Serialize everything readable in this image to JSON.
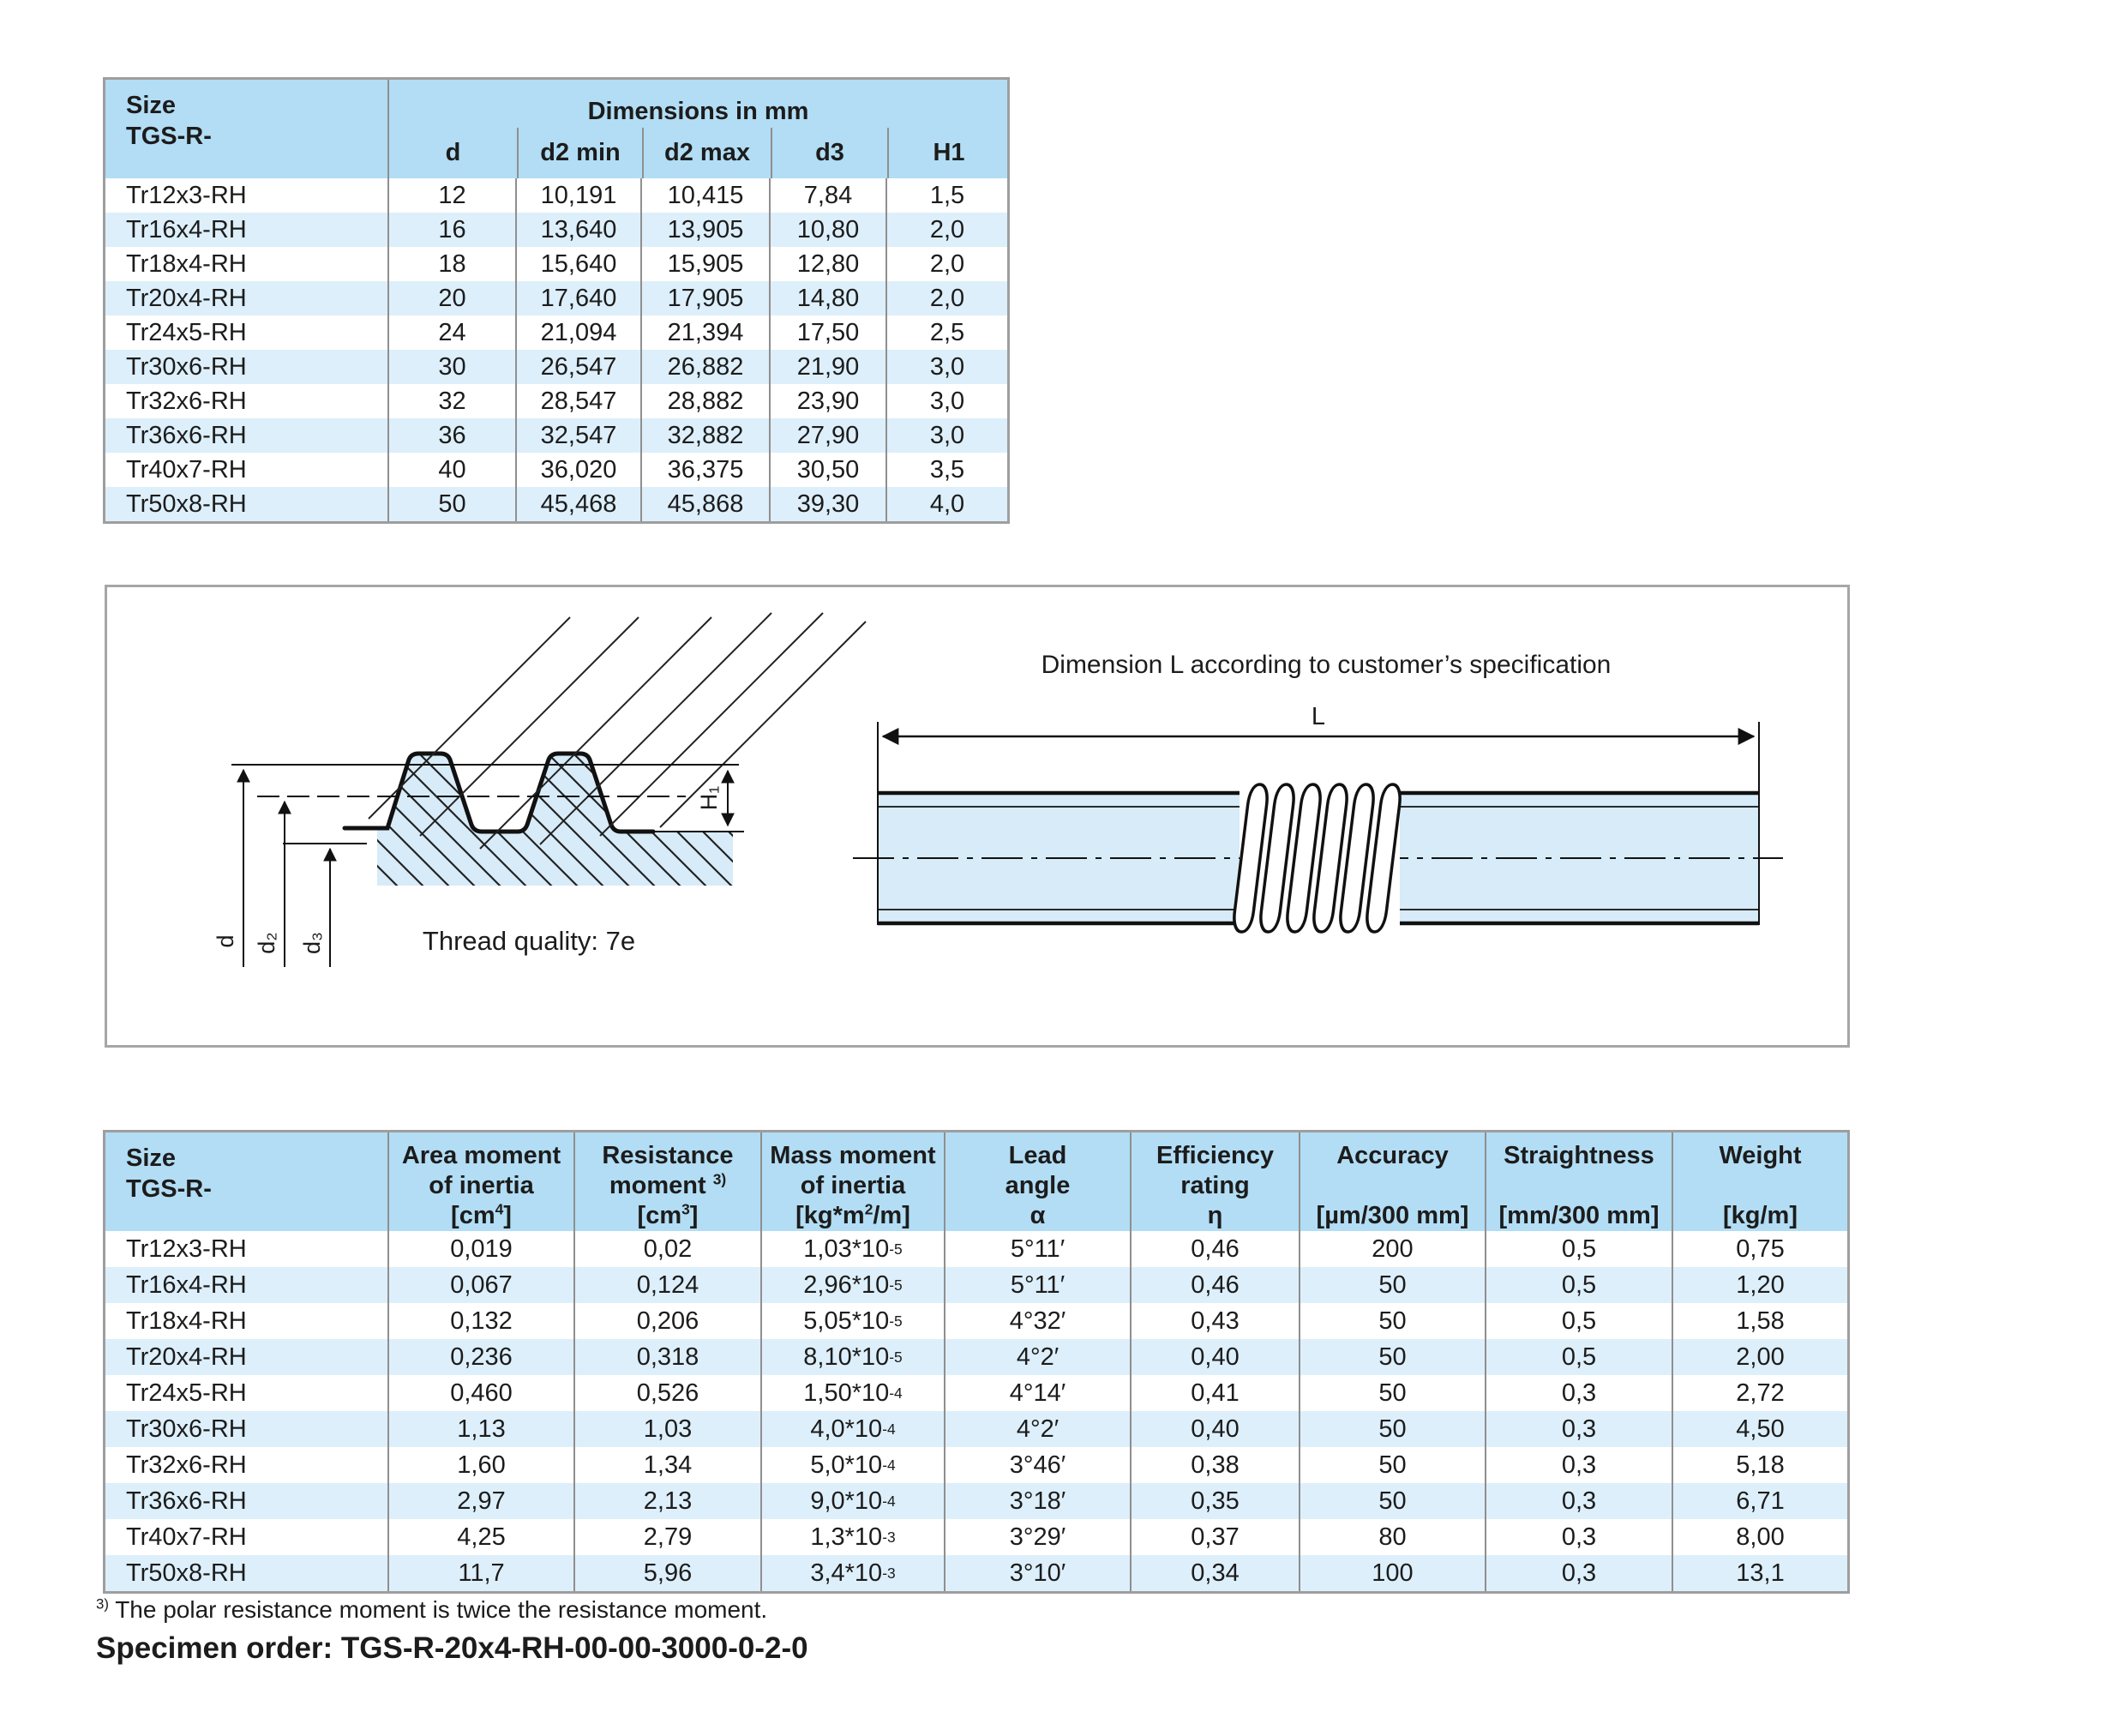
{
  "colors": {
    "hdr": "#b2ddf4",
    "rowalt": "#ddeffa",
    "fill": "#d7ebf8",
    "sep": "#8f8f8f",
    "border": "#9e9e9e",
    "ink": "#1c1c1c"
  },
  "top_table": {
    "title_col": [
      "Size",
      "TGS-R-"
    ],
    "span_header": "Dimensions in mm",
    "columns": [
      "d",
      "d2 min",
      "d2 max",
      "d3",
      "H1"
    ],
    "rows": [
      [
        "Tr12x3-RH",
        "12",
        "10,191",
        "10,415",
        "7,84",
        "1,5"
      ],
      [
        "Tr16x4-RH",
        "16",
        "13,640",
        "13,905",
        "10,80",
        "2,0"
      ],
      [
        "Tr18x4-RH",
        "18",
        "15,640",
        "15,905",
        "12,80",
        "2,0"
      ],
      [
        "Tr20x4-RH",
        "20",
        "17,640",
        "17,905",
        "14,80",
        "2,0"
      ],
      [
        "Tr24x5-RH",
        "24",
        "21,094",
        "21,394",
        "17,50",
        "2,5"
      ],
      [
        "Tr30x6-RH",
        "30",
        "26,547",
        "26,882",
        "21,90",
        "3,0"
      ],
      [
        "Tr32x6-RH",
        "32",
        "28,547",
        "28,882",
        "23,90",
        "3,0"
      ],
      [
        "Tr36x6-RH",
        "36",
        "32,547",
        "32,882",
        "27,90",
        "3,0"
      ],
      [
        "Tr40x7-RH",
        "40",
        "36,020",
        "36,375",
        "30,50",
        "3,5"
      ],
      [
        "Tr50x8-RH",
        "50",
        "45,468",
        "45,868",
        "39,30",
        "4,0"
      ]
    ]
  },
  "diagram": {
    "title": "Dimension L according to customer’s specification",
    "l_label": "L",
    "thread_quality": "Thread quality: 7e",
    "dim_d": "d",
    "dim_d2": "d₂",
    "dim_d3": "d₃",
    "dim_h1": "H₁"
  },
  "bottom_table": {
    "columns": [
      {
        "name": [
          "Size",
          "TGS-R-"
        ],
        "unit": ""
      },
      {
        "name": [
          "Area moment",
          "of inertia"
        ],
        "unit": "[cm^{4}]"
      },
      {
        "name": [
          "Resistance",
          "moment ^{3)}"
        ],
        "unit": "[cm^{3}]"
      },
      {
        "name": [
          "Mass moment",
          "of inertia"
        ],
        "unit": "[kg*m^{2}/m]"
      },
      {
        "name": [
          "Lead",
          "angle"
        ],
        "unit": "α"
      },
      {
        "name": [
          "Efficiency",
          "rating"
        ],
        "unit": "η"
      },
      {
        "name": [
          "Accuracy",
          ""
        ],
        "unit": "[µm/300 mm]"
      },
      {
        "name": [
          "Straightness",
          ""
        ],
        "unit": "[mm/300 mm]"
      },
      {
        "name": [
          "Weight",
          ""
        ],
        "unit": "[kg/m]"
      }
    ],
    "rows": [
      [
        "Tr12x3-RH",
        "0,019",
        "0,02",
        "1,03*10^{-5}",
        "5°11′",
        "0,46",
        "200",
        "0,5",
        "0,75"
      ],
      [
        "Tr16x4-RH",
        "0,067",
        "0,124",
        "2,96*10^{-5}",
        "5°11′",
        "0,46",
        "50",
        "0,5",
        "1,20"
      ],
      [
        "Tr18x4-RH",
        "0,132",
        "0,206",
        "5,05*10^{-5}",
        "4°32′",
        "0,43",
        "50",
        "0,5",
        "1,58"
      ],
      [
        "Tr20x4-RH",
        "0,236",
        "0,318",
        "8,10*10^{-5}",
        "4°2′",
        "0,40",
        "50",
        "0,5",
        "2,00"
      ],
      [
        "Tr24x5-RH",
        "0,460",
        "0,526",
        "1,50*10^{-4}",
        "4°14′",
        "0,41",
        "50",
        "0,3",
        "2,72"
      ],
      [
        "Tr30x6-RH",
        "1,13",
        "1,03",
        "4,0*10^{-4}",
        "4°2′",
        "0,40",
        "50",
        "0,3",
        "4,50"
      ],
      [
        "Tr32x6-RH",
        "1,60",
        "1,34",
        "5,0*10^{-4}",
        "3°46′",
        "0,38",
        "50",
        "0,3",
        "5,18"
      ],
      [
        "Tr36x6-RH",
        "2,97",
        "2,13",
        "9,0*10^{-4}",
        "3°18′",
        "0,35",
        "50",
        "0,3",
        "6,71"
      ],
      [
        "Tr40x7-RH",
        "4,25",
        "2,79",
        "1,3*10^{-3}",
        "3°29′",
        "0,37",
        "80",
        "0,3",
        "8,00"
      ],
      [
        "Tr50x8-RH",
        "11,7",
        "5,96",
        "3,4*10^{-3}",
        "3°10′",
        "0,34",
        "100",
        "0,3",
        "13,1"
      ]
    ]
  },
  "footnote": "^{3)} The polar resistance moment is twice the resistance moment.",
  "specimen_order": "Specimen order: TGS-R-20x4-RH-00-00-3000-0-2-0"
}
